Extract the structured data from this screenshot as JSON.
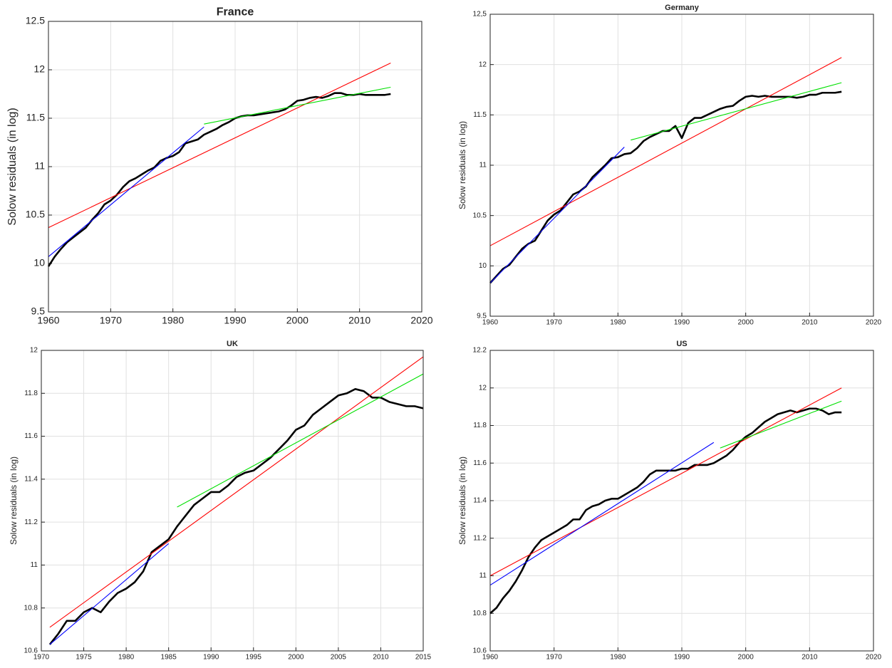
{
  "chart_data": [
    {
      "type": "line",
      "title": "France",
      "ylabel": "Solow residuals (in log)",
      "grid": true,
      "xlim": [
        1960,
        2020
      ],
      "xticks": [
        1960,
        1970,
        1980,
        1990,
        2000,
        2010,
        2020
      ],
      "ylim": [
        9.5,
        12.5
      ],
      "yticks": [
        9.5,
        10,
        10.5,
        11,
        11.5,
        12,
        12.5
      ],
      "series": [
        {
          "color": "#000000",
          "x": [
            1960,
            1961,
            1962,
            1963,
            1964,
            1965,
            1966,
            1967,
            1968,
            1969,
            1970,
            1971,
            1972,
            1973,
            1974,
            1975,
            1976,
            1977,
            1978,
            1979,
            1980,
            1981,
            1982,
            1983,
            1984,
            1985,
            1986,
            1987,
            1988,
            1989,
            1990,
            1991,
            1992,
            1993,
            1994,
            1995,
            1996,
            1997,
            1998,
            1999,
            2000,
            2001,
            2002,
            2003,
            2004,
            2005,
            2006,
            2007,
            2008,
            2009,
            2010,
            2011,
            2012,
            2013,
            2014,
            2015
          ],
          "values": [
            9.97,
            10.07,
            10.15,
            10.22,
            10.27,
            10.32,
            10.37,
            10.45,
            10.52,
            10.61,
            10.65,
            10.71,
            10.79,
            10.85,
            10.88,
            10.92,
            10.96,
            10.99,
            11.06,
            11.09,
            11.11,
            11.15,
            11.24,
            11.26,
            11.28,
            11.33,
            11.36,
            11.39,
            11.43,
            11.46,
            11.5,
            11.52,
            11.53,
            11.53,
            11.54,
            11.55,
            11.56,
            11.57,
            11.59,
            11.63,
            11.68,
            11.69,
            11.71,
            11.72,
            11.71,
            11.73,
            11.76,
            11.76,
            11.74,
            11.74,
            11.75,
            11.74,
            11.74,
            11.74,
            11.74,
            11.75
          ]
        },
        {
          "color": "#ff0000",
          "x": [
            1960,
            2015
          ],
          "values": [
            10.37,
            12.07
          ]
        },
        {
          "color": "#0000ff",
          "x": [
            1960,
            1985
          ],
          "values": [
            10.07,
            11.41
          ]
        },
        {
          "color": "#00e000",
          "x": [
            1985,
            2015
          ],
          "values": [
            11.44,
            11.82
          ]
        }
      ]
    },
    {
      "type": "line",
      "title": "Germany",
      "ylabel": "Solow residuals (in log)",
      "grid": true,
      "xlim": [
        1960,
        2020
      ],
      "xticks": [
        1960,
        1970,
        1980,
        1990,
        2000,
        2010,
        2020
      ],
      "ylim": [
        9.5,
        12.5
      ],
      "yticks": [
        9.5,
        10,
        10.5,
        11,
        11.5,
        12,
        {
          "value": 12.5,
          "label": "12,5"
        }
      ],
      "series": [
        {
          "color": "#000000",
          "x": [
            1960,
            1961,
            1962,
            1963,
            1964,
            1965,
            1966,
            1967,
            1968,
            1969,
            1970,
            1971,
            1972,
            1973,
            1974,
            1975,
            1976,
            1977,
            1978,
            1979,
            1980,
            1981,
            1982,
            1983,
            1984,
            1985,
            1986,
            1987,
            1988,
            1989,
            1990,
            1991,
            1992,
            1993,
            1994,
            1995,
            1996,
            1997,
            1998,
            1999,
            2000,
            2001,
            2002,
            2003,
            2004,
            2005,
            2006,
            2007,
            2008,
            2009,
            2010,
            2011,
            2012,
            2013,
            2014,
            2015
          ],
          "values": [
            9.83,
            9.9,
            9.97,
            10.01,
            10.09,
            10.17,
            10.22,
            10.25,
            10.35,
            10.45,
            10.51,
            10.55,
            10.63,
            10.71,
            10.74,
            10.79,
            10.88,
            10.94,
            11.0,
            11.07,
            11.08,
            11.11,
            11.12,
            11.17,
            11.24,
            11.28,
            11.31,
            11.34,
            11.34,
            11.39,
            11.27,
            11.42,
            11.47,
            11.47,
            11.5,
            11.53,
            11.56,
            11.58,
            11.59,
            11.64,
            11.68,
            11.69,
            11.68,
            11.69,
            11.68,
            11.68,
            11.68,
            11.68,
            11.67,
            11.68,
            11.7,
            11.7,
            11.72,
            11.72,
            11.72,
            11.73
          ]
        },
        {
          "color": "#ff0000",
          "x": [
            1960,
            2015
          ],
          "values": [
            10.2,
            12.07
          ]
        },
        {
          "color": "#0000ff",
          "x": [
            1960,
            1981
          ],
          "values": [
            9.83,
            11.18
          ]
        },
        {
          "color": "#00e000",
          "x": [
            1982,
            2015
          ],
          "values": [
            11.25,
            11.82
          ]
        }
      ]
    },
    {
      "type": "line",
      "title": "UK",
      "ylabel": "Solow residuals (in log)",
      "grid": true,
      "xlim": [
        1970,
        2015
      ],
      "xticks": [
        1970,
        1975,
        1980,
        1985,
        1990,
        1995,
        2000,
        2005,
        2010,
        2015
      ],
      "ylim": [
        10.6,
        12
      ],
      "yticks": [
        10.6,
        10.8,
        11,
        11.2,
        11.4,
        11.6,
        11.8,
        12
      ],
      "series": [
        {
          "color": "#000000",
          "x": [
            1971,
            1972,
            1973,
            1974,
            1975,
            1976,
            1977,
            1978,
            1979,
            1980,
            1981,
            1982,
            1983,
            1984,
            1985,
            1986,
            1987,
            1988,
            1989,
            1990,
            1991,
            1992,
            1993,
            1994,
            1995,
            1996,
            1997,
            1998,
            1999,
            2000,
            2001,
            2002,
            2003,
            2004,
            2005,
            2006,
            2007,
            2008,
            2009,
            2010,
            2011,
            2012,
            2013,
            2014,
            2015
          ],
          "values": [
            10.63,
            10.68,
            10.74,
            10.74,
            10.78,
            10.8,
            10.78,
            10.83,
            10.87,
            10.89,
            10.92,
            10.97,
            11.06,
            11.09,
            11.12,
            11.18,
            11.23,
            11.28,
            11.31,
            11.34,
            11.34,
            11.37,
            11.41,
            11.43,
            11.44,
            11.47,
            11.5,
            11.54,
            11.58,
            11.63,
            11.65,
            11.7,
            11.73,
            11.76,
            11.79,
            11.8,
            11.82,
            11.81,
            11.78,
            11.78,
            11.76,
            11.75,
            11.74,
            11.74,
            11.73
          ]
        },
        {
          "color": "#ff0000",
          "x": [
            1971,
            2015
          ],
          "values": [
            10.71,
            11.97
          ]
        },
        {
          "color": "#0000ff",
          "x": [
            1971,
            1985
          ],
          "values": [
            10.63,
            11.1
          ]
        },
        {
          "color": "#00e000",
          "x": [
            1986,
            2015
          ],
          "values": [
            11.27,
            11.89
          ]
        }
      ]
    },
    {
      "type": "line",
      "title": "US",
      "ylabel": "Solow residuals (in log)",
      "grid": true,
      "xlim": [
        1960,
        2020
      ],
      "xticks": [
        1960,
        1970,
        1980,
        1990,
        2000,
        2010,
        2020
      ],
      "ylim": [
        10.6,
        12.2
      ],
      "yticks": [
        10.6,
        10.8,
        11,
        11.2,
        11.4,
        11.6,
        11.8,
        12,
        12.2
      ],
      "series": [
        {
          "color": "#000000",
          "x": [
            1960,
            1961,
            1962,
            1963,
            1964,
            1965,
            1966,
            1967,
            1968,
            1969,
            1970,
            1971,
            1972,
            1973,
            1974,
            1975,
            1976,
            1977,
            1978,
            1979,
            1980,
            1981,
            1982,
            1983,
            1984,
            1985,
            1986,
            1987,
            1988,
            1989,
            1990,
            1991,
            1992,
            1993,
            1994,
            1995,
            1996,
            1997,
            1998,
            1999,
            2000,
            2001,
            2002,
            2003,
            2004,
            2005,
            2006,
            2007,
            2008,
            2009,
            2010,
            2011,
            2012,
            2013,
            2014,
            2015
          ],
          "values": [
            10.8,
            10.83,
            10.88,
            10.92,
            10.97,
            11.03,
            11.1,
            11.15,
            11.19,
            11.21,
            11.23,
            11.25,
            11.27,
            11.3,
            11.3,
            11.35,
            11.37,
            11.38,
            11.4,
            11.41,
            11.41,
            11.43,
            11.45,
            11.47,
            11.5,
            11.54,
            11.56,
            11.56,
            11.56,
            11.56,
            11.57,
            11.57,
            11.59,
            11.59,
            11.59,
            11.6,
            11.62,
            11.64,
            11.67,
            11.71,
            11.74,
            11.76,
            11.79,
            11.82,
            11.84,
            11.86,
            11.87,
            11.88,
            11.87,
            11.88,
            11.89,
            11.89,
            11.88,
            11.86,
            11.87,
            11.87
          ]
        },
        {
          "color": "#ff0000",
          "x": [
            1960,
            2015
          ],
          "values": [
            11.0,
            12.0
          ]
        },
        {
          "color": "#0000ff",
          "x": [
            1960,
            1995
          ],
          "values": [
            10.95,
            11.71
          ]
        },
        {
          "color": "#00e000",
          "x": [
            1996,
            2015
          ],
          "values": [
            11.68,
            11.93
          ]
        }
      ]
    }
  ]
}
